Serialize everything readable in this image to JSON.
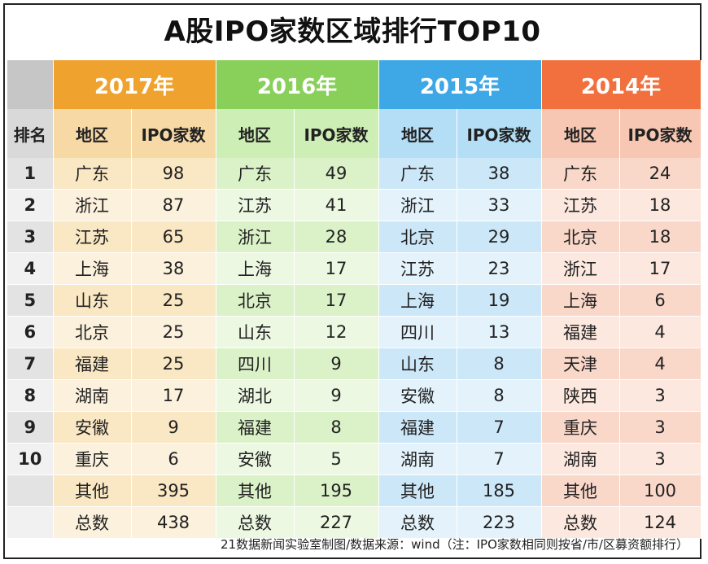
{
  "title": "A股IPO家数区域排行TOP10",
  "header": {
    "rank_label": "排名",
    "region_label": "地区",
    "count_label": "IPO家数"
  },
  "years": [
    "2017年",
    "2016年",
    "2015年",
    "2014年"
  ],
  "rows": [
    {
      "rank": "1",
      "cells": [
        [
          "广东",
          "98"
        ],
        [
          "广东",
          "49"
        ],
        [
          "广东",
          "38"
        ],
        [
          "广东",
          "24"
        ]
      ]
    },
    {
      "rank": "2",
      "cells": [
        [
          "浙江",
          "87"
        ],
        [
          "江苏",
          "41"
        ],
        [
          "浙江",
          "33"
        ],
        [
          "江苏",
          "18"
        ]
      ]
    },
    {
      "rank": "3",
      "cells": [
        [
          "江苏",
          "65"
        ],
        [
          "浙江",
          "28"
        ],
        [
          "北京",
          "29"
        ],
        [
          "北京",
          "18"
        ]
      ]
    },
    {
      "rank": "4",
      "cells": [
        [
          "上海",
          "38"
        ],
        [
          "上海",
          "17"
        ],
        [
          "江苏",
          "23"
        ],
        [
          "浙江",
          "17"
        ]
      ]
    },
    {
      "rank": "5",
      "cells": [
        [
          "山东",
          "25"
        ],
        [
          "北京",
          "17"
        ],
        [
          "上海",
          "19"
        ],
        [
          "上海",
          "6"
        ]
      ]
    },
    {
      "rank": "6",
      "cells": [
        [
          "北京",
          "25"
        ],
        [
          "山东",
          "12"
        ],
        [
          "四川",
          "13"
        ],
        [
          "福建",
          "4"
        ]
      ]
    },
    {
      "rank": "7",
      "cells": [
        [
          "福建",
          "25"
        ],
        [
          "四川",
          "9"
        ],
        [
          "山东",
          "8"
        ],
        [
          "天津",
          "4"
        ]
      ]
    },
    {
      "rank": "8",
      "cells": [
        [
          "湖南",
          "17"
        ],
        [
          "湖北",
          "9"
        ],
        [
          "安徽",
          "8"
        ],
        [
          "陕西",
          "3"
        ]
      ]
    },
    {
      "rank": "9",
      "cells": [
        [
          "安徽",
          "9"
        ],
        [
          "福建",
          "8"
        ],
        [
          "福建",
          "7"
        ],
        [
          "重庆",
          "3"
        ]
      ]
    },
    {
      "rank": "10",
      "cells": [
        [
          "重庆",
          "6"
        ],
        [
          "安徽",
          "5"
        ],
        [
          "湖南",
          "7"
        ],
        [
          "湖南",
          "3"
        ]
      ]
    },
    {
      "rank": "",
      "cells": [
        [
          "其他",
          "395"
        ],
        [
          "其他",
          "195"
        ],
        [
          "其他",
          "185"
        ],
        [
          "其他",
          "100"
        ]
      ]
    },
    {
      "rank": "",
      "cells": [
        [
          "总数",
          "438"
        ],
        [
          "总数",
          "227"
        ],
        [
          "总数",
          "223"
        ],
        [
          "总数",
          "124"
        ]
      ]
    }
  ],
  "source": "21数据新闻实验室制图/数据来源：wind（注：IPO家数相同则按省/市/区募资额排行）",
  "colors": {
    "y2017": "#f0a22e",
    "y2016": "#88d05a",
    "y2015": "#3ea7e6",
    "y2014": "#f2703e"
  }
}
